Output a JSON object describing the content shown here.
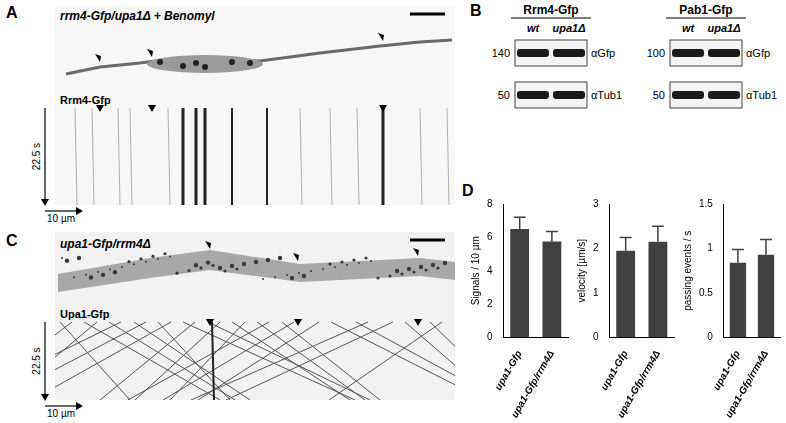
{
  "panels": {
    "A": {
      "label": "A",
      "title": "rrm4-Gfp/upa1Δ + Benomyl",
      "channel": "Rrm4-Gfp",
      "time_axis": "22.5 s",
      "distance_axis": "10 µm"
    },
    "B": {
      "label": "B",
      "blots": [
        {
          "title": "Rrm4-Gfp",
          "lanes": [
            "wt",
            "upa1Δ"
          ],
          "rows": [
            {
              "marker": 140,
              "antibody": "αGfp"
            },
            {
              "marker": 50,
              "antibody": "αTub1"
            }
          ]
        },
        {
          "title": "Pab1-Gfp",
          "lanes": [
            "wt",
            "upa1Δ"
          ],
          "rows": [
            {
              "marker": 100,
              "antibody": "αGfp"
            },
            {
              "marker": 50,
              "antibody": "αTub1"
            }
          ]
        }
      ]
    },
    "C": {
      "label": "C",
      "title": "upa1-Gfp/rrm4Δ",
      "channel": "Upa1-Gfp",
      "time_axis": "22.5 s",
      "distance_axis": "10 µm"
    },
    "D": {
      "label": "D"
    }
  },
  "chart_data": [
    {
      "type": "bar",
      "y_label": "Signals / 10 µm",
      "categories": [
        "upa1-Gfp",
        "upa1-Gfp/rrm4Δ"
      ],
      "values": [
        6.5,
        5.75
      ],
      "errors": [
        0.7,
        0.6
      ],
      "color": "#404040",
      "ylim": [
        0,
        8
      ],
      "yticks": [
        0,
        2,
        4,
        6,
        8
      ],
      "grid": false
    },
    {
      "type": "bar",
      "y_label": "velocity [µm/s]",
      "categories": [
        "upa1-Gfp",
        "upa1-Gfp/rrm4Δ"
      ],
      "values": [
        1.95,
        2.15
      ],
      "errors": [
        0.3,
        0.35
      ],
      "color": "#404040",
      "ylim": [
        0,
        3
      ],
      "yticks": [
        0,
        1,
        2,
        3
      ],
      "grid": false
    },
    {
      "type": "bar",
      "y_label": "passing events / s",
      "categories": [
        "upa1-Gfp",
        "upa1-Gfp/rrm4Δ"
      ],
      "values": [
        0.84,
        0.93
      ],
      "errors": [
        0.15,
        0.17
      ],
      "color": "#404040",
      "ylim": [
        0,
        1.5
      ],
      "yticks": [
        0,
        0.5,
        1,
        1.5
      ],
      "grid": false
    }
  ]
}
